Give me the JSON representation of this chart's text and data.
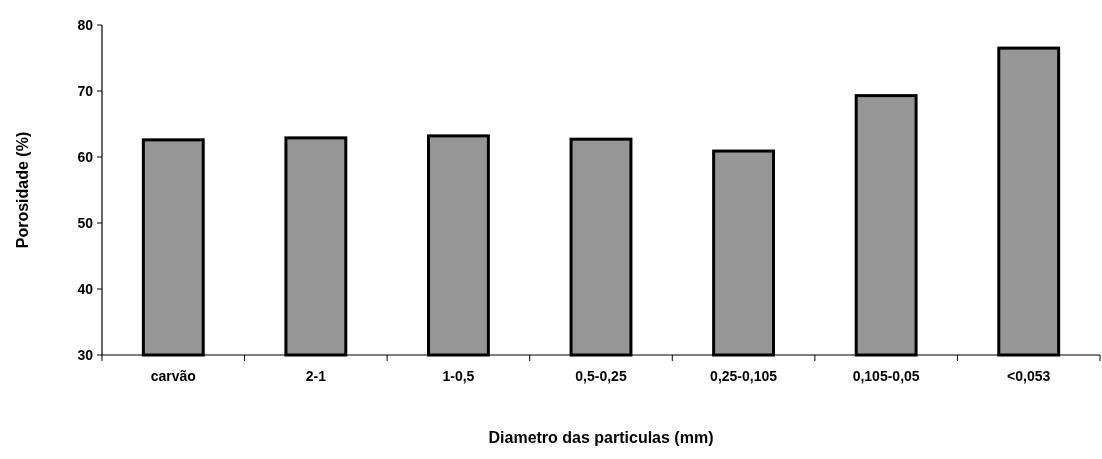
{
  "chart_data": {
    "type": "bar",
    "xlabel": "Diametro das particulas (mm)",
    "ylabel": "Porosidade (%)",
    "categories": [
      "carvão",
      "2-1",
      "1-0,5",
      "0,5-0,25",
      "0,25-0,105",
      "0,105-0,05",
      "<0,053"
    ],
    "values": [
      62.6,
      62.9,
      63.2,
      62.7,
      60.9,
      69.3,
      76.5
    ],
    "color": "#969696",
    "ylim": [
      30,
      80
    ],
    "yticks": [
      30,
      40,
      50,
      60,
      70,
      80
    ]
  }
}
